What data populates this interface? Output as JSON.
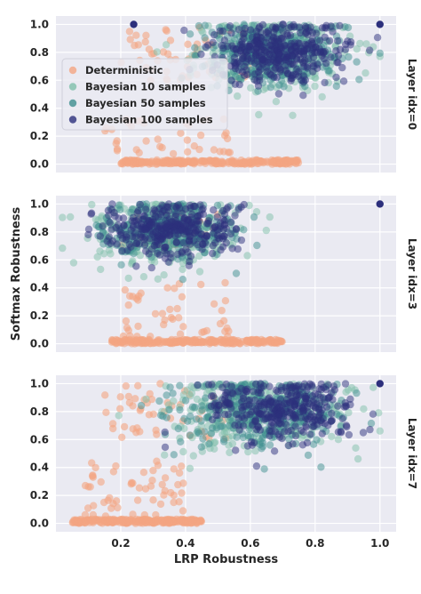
{
  "chart_data": {
    "type": "scatter",
    "xlabel": "LRP Robustness",
    "ylabel": "Softmax Robustness",
    "xlim": [
      0.0,
      1.05
    ],
    "ylim": [
      -0.06,
      1.06
    ],
    "x_ticks": [
      "0.2",
      "0.4",
      "0.6",
      "0.8",
      "1.0"
    ],
    "x_tick_values": [
      0.2,
      0.4,
      0.6,
      0.8,
      1.0
    ],
    "y_ticks": [
      "0.0",
      "0.2",
      "0.4",
      "0.6",
      "0.8",
      "1.0"
    ],
    "y_tick_values": [
      0.0,
      0.2,
      0.4,
      0.6,
      0.8,
      1.0
    ],
    "grid": true,
    "legend_position": "upper-left of top panel",
    "series": [
      {
        "name": "Deterministic",
        "color": "#f4a582"
      },
      {
        "name": "Bayesian 10 samples",
        "color": "#7fbfaa"
      },
      {
        "name": "Bayesian 50 samples",
        "color": "#3f8f8f"
      },
      {
        "name": "Bayesian 100 samples",
        "color": "#2c2f7c"
      }
    ],
    "panels": [
      {
        "label": "Layer idx=0",
        "clusters": {
          "Deterministic": {
            "low": {
              "x_range": [
                0.2,
                0.75
              ],
              "y_range": [
                0.0,
                0.03
              ],
              "count": 250
            },
            "mid": {
              "x_range": [
                0.15,
                0.55
              ],
              "y_range": [
                0.05,
                0.35
              ],
              "count": 40
            },
            "high": {
              "x_range": [
                0.2,
                0.6
              ],
              "y_range": [
                0.6,
                1.0
              ],
              "count": 60
            }
          },
          "Bayesian 10 samples": {
            "center": [
              0.68,
              0.78
            ],
            "spread": [
              0.11,
              0.14
            ],
            "count": 300
          },
          "Bayesian 50 samples": {
            "center": [
              0.66,
              0.8
            ],
            "spread": [
              0.11,
              0.12
            ],
            "count": 300
          },
          "Bayesian 100 samples": {
            "center": [
              0.68,
              0.8
            ],
            "spread": [
              0.1,
              0.11
            ],
            "count": 350
          }
        },
        "highlight_points": [
          {
            "x": 1.0,
            "y": 1.0,
            "series": "Bayesian 100 samples"
          },
          {
            "x": 0.24,
            "y": 1.0,
            "series": "Bayesian 100 samples"
          }
        ]
      },
      {
        "label": "Layer idx=3",
        "clusters": {
          "Deterministic": {
            "low": {
              "x_range": [
                0.17,
                0.7
              ],
              "y_range": [
                0.0,
                0.03
              ],
              "count": 250
            },
            "mid": {
              "x_range": [
                0.2,
                0.55
              ],
              "y_range": [
                0.05,
                0.45
              ],
              "count": 45
            },
            "high": {
              "x_range": [
                0.2,
                0.5
              ],
              "y_range": [
                0.7,
                0.98
              ],
              "count": 40
            }
          },
          "Bayesian 10 samples": {
            "center": [
              0.33,
              0.8
            ],
            "spread": [
              0.11,
              0.12
            ],
            "count": 280
          },
          "Bayesian 50 samples": {
            "center": [
              0.34,
              0.82
            ],
            "spread": [
              0.1,
              0.11
            ],
            "count": 280
          },
          "Bayesian 100 samples": {
            "center": [
              0.35,
              0.82
            ],
            "spread": [
              0.1,
              0.1
            ],
            "count": 320
          }
        },
        "highlight_points": [
          {
            "x": 1.0,
            "y": 1.0,
            "series": "Bayesian 100 samples"
          }
        ]
      },
      {
        "label": "Layer idx=7",
        "clusters": {
          "Deterministic": {
            "low": {
              "x_range": [
                0.05,
                0.45
              ],
              "y_range": [
                0.0,
                0.03
              ],
              "count": 250
            },
            "mid": {
              "x_range": [
                0.08,
                0.4
              ],
              "y_range": [
                0.05,
                0.45
              ],
              "count": 55
            },
            "high": {
              "x_range": [
                0.15,
                0.55
              ],
              "y_range": [
                0.6,
                1.0
              ],
              "count": 50
            }
          },
          "Bayesian 10 samples": {
            "center": [
              0.62,
              0.8
            ],
            "spread": [
              0.14,
              0.14
            ],
            "count": 300
          },
          "Bayesian 50 samples": {
            "center": [
              0.63,
              0.8
            ],
            "spread": [
              0.13,
              0.13
            ],
            "count": 300
          },
          "Bayesian 100 samples": {
            "center": [
              0.7,
              0.82
            ],
            "spread": [
              0.11,
              0.11
            ],
            "count": 330
          }
        },
        "highlight_points": [
          {
            "x": 1.0,
            "y": 1.0,
            "series": "Bayesian 100 samples"
          }
        ]
      }
    ]
  }
}
